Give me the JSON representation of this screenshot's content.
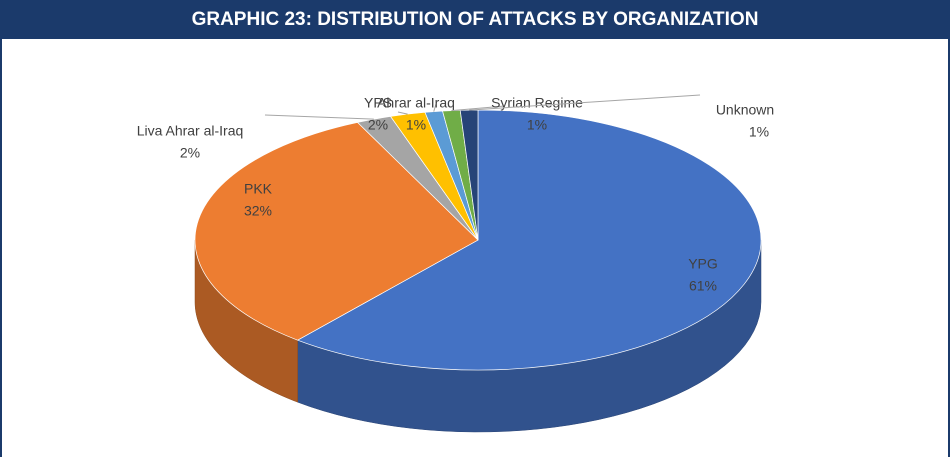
{
  "chart_data": {
    "type": "pie",
    "title": "GRAPHIC 23: DISTRIBUTION OF ATTACKS BY ORGANIZATION",
    "categories": [
      "YPG",
      "PKK",
      "Liva Ahrar al-Iraq",
      "YPS",
      "Ahrar al-Iraq",
      "Syrian Regime",
      "Unknown"
    ],
    "values": [
      61,
      32,
      2,
      2,
      1,
      1,
      1
    ],
    "value_labels": [
      "61%",
      "32%",
      "2%",
      "2%",
      "1%",
      "1%",
      "1%"
    ],
    "colors": [
      "#4472c4",
      "#ed7d31",
      "#a5a5a5",
      "#ffc000",
      "#5b9bd5",
      "#70ad47",
      "#264478"
    ]
  }
}
